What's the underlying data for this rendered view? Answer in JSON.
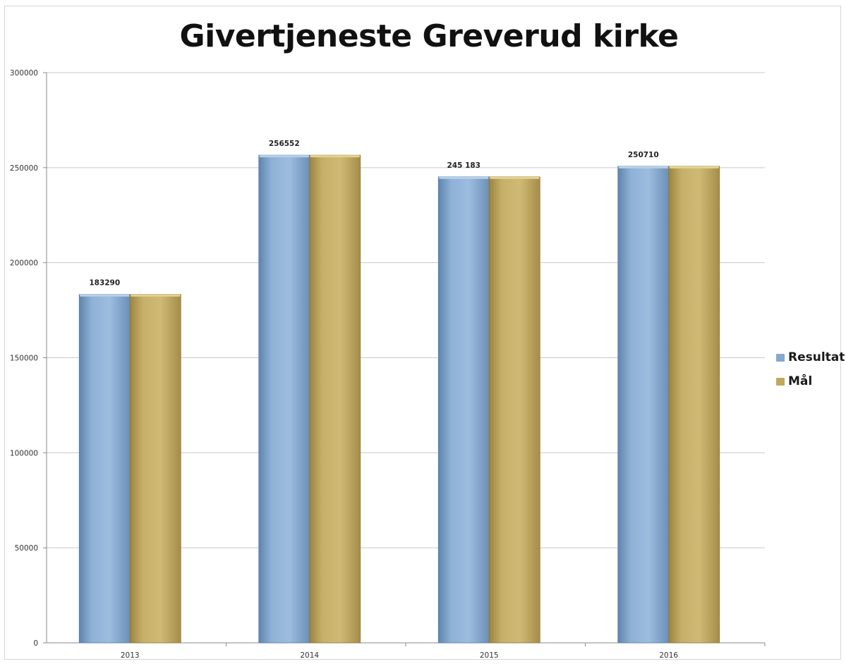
{
  "chart_data": {
    "type": "bar",
    "title": "Givertjeneste Greverud kirke",
    "categories": [
      "2013",
      "2014",
      "2015",
      "2016"
    ],
    "series": [
      {
        "name": "Resultat",
        "values": [
          183290,
          256552,
          245183,
          250710
        ],
        "color": "#86a9cf"
      },
      {
        "name": "Mål",
        "values": [
          183290,
          256552,
          245183,
          250710
        ],
        "color": "#c0a95e"
      }
    ],
    "data_labels": [
      "183290",
      "256552",
      "245 183",
      "250710"
    ],
    "ylim": [
      0,
      300000
    ],
    "yticks": [
      0,
      50000,
      100000,
      150000,
      200000,
      250000,
      300000
    ],
    "ytick_labels": [
      "0",
      "50000",
      "100000",
      "150000",
      "200000",
      "250000",
      "300000"
    ],
    "xlabel": "",
    "ylabel": "",
    "grid": true,
    "legend_position": "right"
  }
}
